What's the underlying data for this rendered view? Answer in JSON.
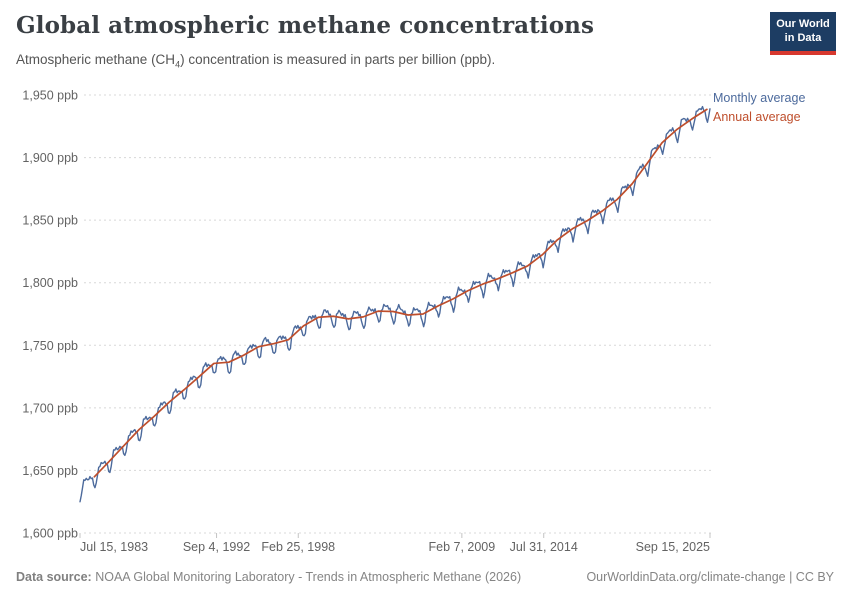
{
  "header": {
    "title": "Global atmospheric methane concentrations",
    "subtitle_prefix": "Atmospheric methane (CH",
    "subtitle_sub": "4",
    "subtitle_suffix": ") concentration is measured in parts per billion (ppb).",
    "logo_line1": "Our World",
    "logo_line2": "in Data"
  },
  "legend": {
    "monthly_label": "Monthly average",
    "annual_label": "Annual average"
  },
  "footer": {
    "source_label": "Data source:",
    "source_text": " NOAA Global Monitoring Laboratory - Trends in Atmospheric Methane (2026)",
    "right_text": "OurWorldinData.org/climate-change | CC BY"
  },
  "colors": {
    "monthly_line": "#4C6A9C",
    "annual_line": "#BE4E2C",
    "grid": "#d8d8d8",
    "axis_text": "#636363",
    "logo_bg": "#1d3d63",
    "logo_red": "#d7382e",
    "title_text": "#3a3f44",
    "footer_text": "#858585"
  },
  "chart_data": {
    "type": "line",
    "title": "Global atmospheric methane concentrations",
    "ylabel": "ppb",
    "ylim": [
      1600,
      1950
    ],
    "xlim": [
      1983.54,
      2025.71
    ],
    "grid": true,
    "legend_position": "right-of-line-end",
    "y_ticks": [
      {
        "label": "1,600 ppb",
        "value": 1600
      },
      {
        "label": "1,650 ppb",
        "value": 1650
      },
      {
        "label": "1,700 ppb",
        "value": 1700
      },
      {
        "label": "1,750 ppb",
        "value": 1750
      },
      {
        "label": "1,800 ppb",
        "value": 1800
      },
      {
        "label": "1,850 ppb",
        "value": 1850
      },
      {
        "label": "1,900 ppb",
        "value": 1900
      },
      {
        "label": "1,950 ppb",
        "value": 1950
      }
    ],
    "x_ticks": [
      {
        "label": "Jul 15, 1983",
        "t": 1983.54
      },
      {
        "label": "Sep 4, 1992",
        "t": 1992.68
      },
      {
        "label": "Feb 25, 1998",
        "t": 1998.15
      },
      {
        "label": "Feb 7, 2009",
        "t": 2009.1
      },
      {
        "label": "Jul 31, 2014",
        "t": 2014.58
      },
      {
        "label": "Sep 15, 2025",
        "t": 2025.71
      }
    ],
    "series": [
      {
        "name": "Annual average",
        "start_year": 1984,
        "values": [
          1644.9,
          1657.3,
          1670.1,
          1682.7,
          1693.2,
          1704.5,
          1714.4,
          1724.8,
          1735.5,
          1736.5,
          1742.1,
          1748.9,
          1751.3,
          1754.5,
          1765.5,
          1772.4,
          1773.2,
          1771.1,
          1772.7,
          1777.3,
          1777.0,
          1774.2,
          1775.0,
          1781.4,
          1787.0,
          1793.6,
          1798.9,
          1803.1,
          1808.0,
          1813.4,
          1822.5,
          1834.3,
          1843.1,
          1849.6,
          1857.3,
          1866.6,
          1879.1,
          1895.3,
          1911.8,
          1922.5,
          1930.9,
          1938.5
        ]
      },
      {
        "name": "Monthly average",
        "derivation": "annual average interpolated + monthly seasonal offsets",
        "first_month": "1983-07",
        "last_month": "2025-09",
        "lead_anchor_year": 1983.5,
        "lead_anchor_value": 1634,
        "seasonal_offsets_ppb": [
          3.5,
          3,
          2.5,
          1.5,
          -1.5,
          -6,
          -9.5,
          -6.5,
          0,
          3.5,
          5,
          4.5
        ],
        "texture_amplitudes_ppb": [
          1.2,
          0.8
        ]
      }
    ]
  }
}
